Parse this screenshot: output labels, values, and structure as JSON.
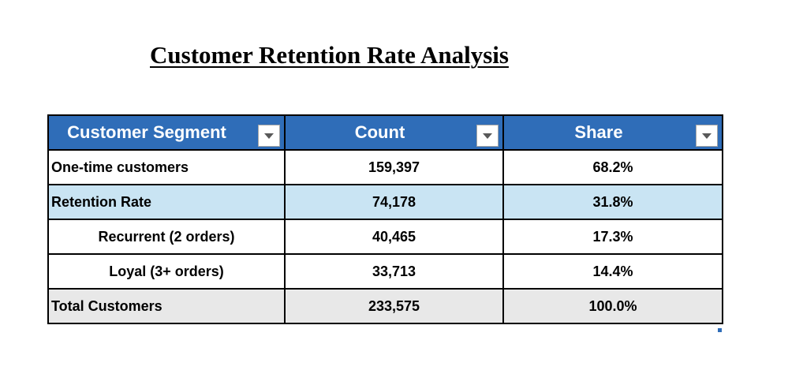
{
  "title": "Customer Retention Rate Analysis",
  "table": {
    "headers": [
      {
        "label": "Customer Segment",
        "filter_icon": "dropdown-arrow-icon"
      },
      {
        "label": "Count",
        "filter_icon": "dropdown-arrow-icon"
      },
      {
        "label": "Share",
        "filter_icon": "dropdown-arrow-icon"
      }
    ],
    "rows": [
      {
        "segment": "One-time customers",
        "count": "159,397",
        "share": "68.2%",
        "style": "plain"
      },
      {
        "segment": "Retention Rate",
        "count": "74,178",
        "share": "31.8%",
        "style": "highlight-blue"
      },
      {
        "segment": "Recurrent (2 orders)",
        "count": "40,465",
        "share": "17.3%",
        "style": "indented"
      },
      {
        "segment": "Loyal (3+ orders)",
        "count": "33,713",
        "share": "14.4%",
        "style": "indented"
      },
      {
        "segment": "Total Customers",
        "count": "233,575",
        "share": "100.0%",
        "style": "total-gray"
      }
    ]
  },
  "colors": {
    "header_bg": "#2f6db8",
    "header_text": "#ffffff",
    "highlight_row": "#c9e4f3",
    "total_row": "#e8e8e8",
    "border": "#000000"
  }
}
